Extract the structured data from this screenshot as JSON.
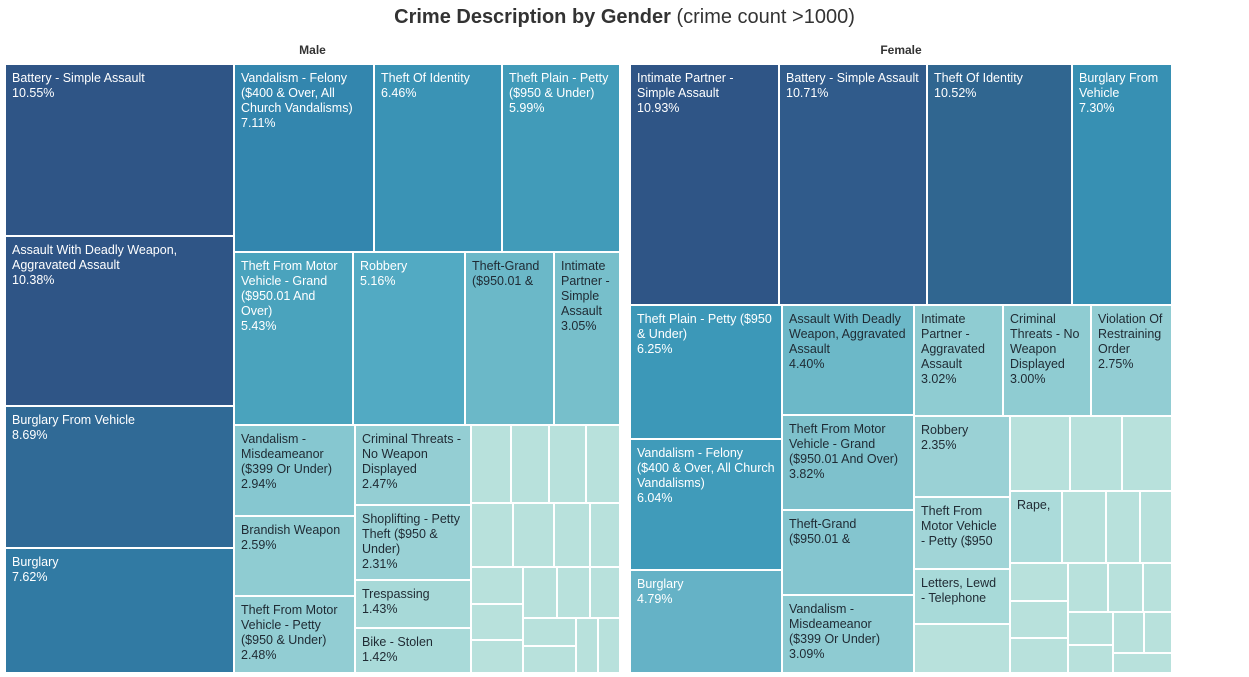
{
  "chart_data": {
    "type": "treemap",
    "title": "Crime Description by Gender",
    "subtitle": "(crime count >1000)",
    "panels": [
      {
        "name": "Male",
        "items": [
          {
            "label": "Battery - Simple Assault",
            "value": "10.55%",
            "color": "#2f5586"
          },
          {
            "label": "Assault With Deadly Weapon, Aggravated Assault",
            "value": "10.38%",
            "color": "#2f5586"
          },
          {
            "label": "Burglary From Vehicle",
            "value": "8.69%",
            "color": "#306a96"
          },
          {
            "label": "Burglary",
            "value": "7.62%",
            "color": "#317aa3"
          },
          {
            "label": "Vandalism - Felony ($400 & Over, All Church Vandalisms)",
            "value": "7.11%",
            "color": "#3386ae"
          },
          {
            "label": "Theft Of Identity",
            "value": "6.46%",
            "color": "#3a93b5"
          },
          {
            "label": "Theft Plain - Petty ($950 & Under)",
            "value": "5.99%",
            "color": "#419bb9"
          },
          {
            "label": "Theft From Motor Vehicle - Grand ($950.01 And Over)",
            "value": "5.43%",
            "color": "#4aa3bd"
          },
          {
            "label": "Robbery",
            "value": "5.16%",
            "color": "#52aac3"
          },
          {
            "label": "Theft-Grand ($950.01 &",
            "value": "",
            "color": "#6bb8c8"
          },
          {
            "label": "Intimate Partner - Simple Assault",
            "value": "3.05%",
            "color": "#77bfcb"
          },
          {
            "label": "Vandalism - Misdeameanor ($399 Or Under)",
            "value": "2.94%",
            "color": "#86c7d0"
          },
          {
            "label": "Criminal Threats - No Weapon Displayed",
            "value": "2.47%",
            "color": "#94ced3"
          },
          {
            "label": "Brandish Weapon",
            "value": "2.59%",
            "color": "#8fccd2"
          },
          {
            "label": "Shoplifting - Petty Theft ($950 & Under)",
            "value": "2.31%",
            "color": "#99d1d5"
          },
          {
            "label": "Theft From Motor Vehicle - Petty ($950 & Under)",
            "value": "2.48%",
            "color": "#92cdd3"
          },
          {
            "label": "Trespassing",
            "value": "1.43%",
            "color": "#a7d9d8"
          },
          {
            "label": "Bike - Stolen",
            "value": "1.42%",
            "color": "#a9dad9"
          }
        ]
      },
      {
        "name": "Female",
        "items": [
          {
            "label": "Intimate Partner - Simple Assault",
            "value": "10.93%",
            "color": "#2f5586"
          },
          {
            "label": "Battery - Simple Assault",
            "value": "10.71%",
            "color": "#305b8b"
          },
          {
            "label": "Theft Of Identity",
            "value": "10.52%",
            "color": "#306690"
          },
          {
            "label": "Burglary From Vehicle",
            "value": "7.30%",
            "color": "#3790b3"
          },
          {
            "label": "Theft Plain - Petty ($950 & Under)",
            "value": "6.25%",
            "color": "#3c98b8"
          },
          {
            "label": "Vandalism - Felony ($400 & Over, All Church Vandalisms)",
            "value": "6.04%",
            "color": "#409bba"
          },
          {
            "label": "Burglary",
            "value": "4.79%",
            "color": "#65b2c6"
          },
          {
            "label": "Assault With Deadly Weapon, Aggravated Assault",
            "value": "4.40%",
            "color": "#6cb8c8"
          },
          {
            "label": "Theft From Motor Vehicle - Grand ($950.01 And Over)",
            "value": "3.82%",
            "color": "#7ec1cc"
          },
          {
            "label": "Theft-Grand ($950.01 &",
            "value": "",
            "color": "#84c5cf"
          },
          {
            "label": "Vandalism - Misdeameanor ($399 Or Under)",
            "value": "3.09%",
            "color": "#8ecbd2"
          },
          {
            "label": "Intimate Partner - Aggravated Assault",
            "value": "3.02%",
            "color": "#8fccd2"
          },
          {
            "label": "Criminal Threats - No Weapon Displayed",
            "value": "3.00%",
            "color": "#8fccd2"
          },
          {
            "label": "Violation Of Restraining Order",
            "value": "2.75%",
            "color": "#92cdd3"
          },
          {
            "label": "Robbery",
            "value": "2.35%",
            "color": "#9ad1d5"
          },
          {
            "label": "Theft From Motor Vehicle - Petty ($950",
            "value": "",
            "color": "#a1d5d7"
          },
          {
            "label": "Rape,",
            "value": "",
            "color": "#abdbda"
          },
          {
            "label": "Letters, Lewd - Telephone",
            "value": "",
            "color": "#a8dad9"
          }
        ]
      }
    ],
    "unlabeled_color": "#b8e1dc"
  }
}
